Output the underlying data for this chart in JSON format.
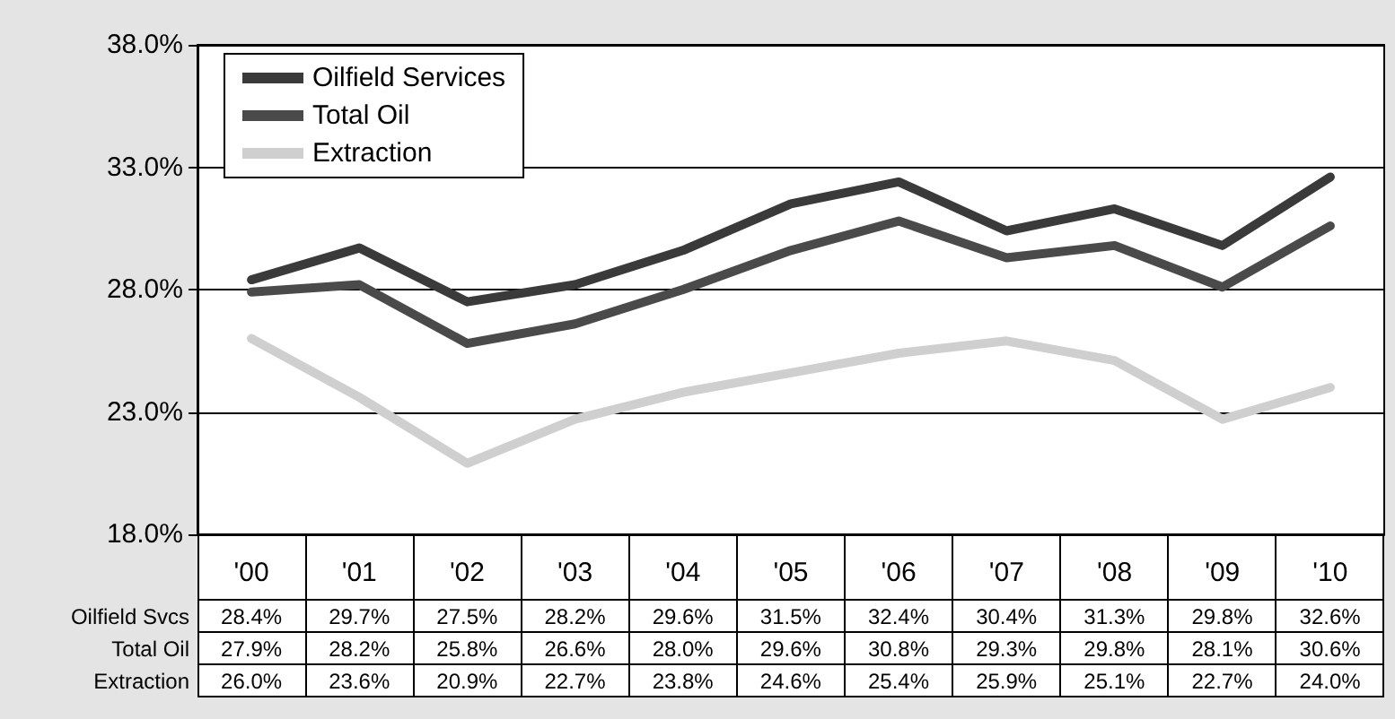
{
  "chart_data": {
    "type": "line",
    "categories": [
      "'00",
      "'01",
      "'02",
      "'03",
      "'04",
      "'05",
      "'06",
      "'07",
      "'08",
      "'09",
      "'10"
    ],
    "series": [
      {
        "name": "Oilfield Services",
        "color": "#3a3a3a",
        "values": [
          28.4,
          29.7,
          27.5,
          28.2,
          29.6,
          31.5,
          32.4,
          30.4,
          31.3,
          29.8,
          32.6
        ],
        "value_labels": [
          "28.4%",
          "29.7%",
          "27.5%",
          "28.2%",
          "29.6%",
          "31.5%",
          "32.4%",
          "30.4%",
          "31.3%",
          "29.8%",
          "32.6%"
        ]
      },
      {
        "name": "Total Oil",
        "color": "#4a4a4a",
        "values": [
          27.9,
          28.2,
          25.8,
          26.6,
          28.0,
          29.6,
          30.8,
          29.3,
          29.8,
          28.1,
          30.6
        ],
        "value_labels": [
          "27.9%",
          "28.2%",
          "25.8%",
          "26.6%",
          "28.0%",
          "29.6%",
          "30.8%",
          "29.3%",
          "29.8%",
          "28.1%",
          "30.6%"
        ]
      },
      {
        "name": "Extraction",
        "color": "#cfcfcf",
        "values": [
          26.0,
          23.6,
          20.9,
          22.7,
          23.8,
          24.6,
          25.4,
          25.9,
          25.1,
          22.7,
          24.0
        ],
        "value_labels": [
          "26.0%",
          "23.6%",
          "20.9%",
          "22.7%",
          "23.8%",
          "24.6%",
          "25.4%",
          "25.9%",
          "25.1%",
          "22.7%",
          "24.0%"
        ]
      }
    ],
    "annotations": [
      "Oilfield Svcs",
      "Total Oil",
      "Extraction"
    ],
    "ylim": [
      18,
      38
    ],
    "yticks": [
      {
        "value": 18,
        "label": "18.0%"
      },
      {
        "value": 23,
        "label": "23.0%"
      },
      {
        "value": 28,
        "label": "28.0%"
      },
      {
        "value": 33,
        "label": "33.0%"
      },
      {
        "value": 38,
        "label": "38.0%"
      }
    ],
    "grid": "y",
    "legend": "top left",
    "marker": "none",
    "line_style": "solid"
  }
}
